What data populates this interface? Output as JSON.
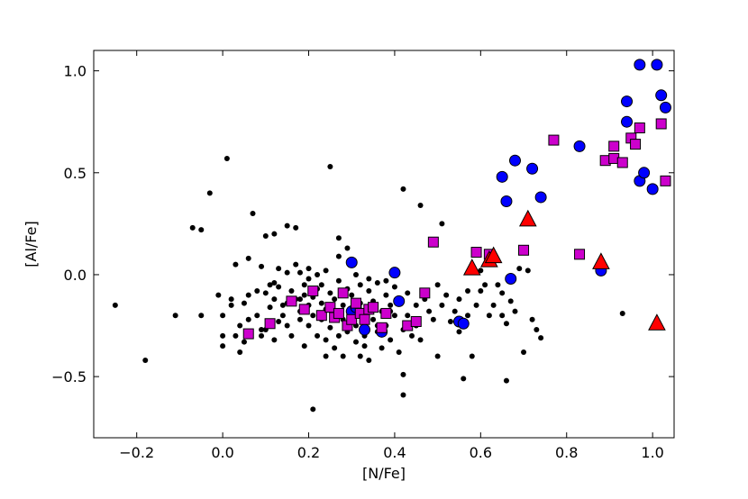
{
  "chart_data": {
    "type": "scatter",
    "xlabel": "[N/Fe]",
    "ylabel": "[Al/Fe]",
    "xlim": [
      -0.3,
      1.05
    ],
    "ylim": [
      -0.8,
      1.1
    ],
    "xticks": [
      -0.2,
      0.0,
      0.2,
      0.4,
      0.6,
      0.8,
      1.0
    ],
    "xtick_labels": [
      "−0.2",
      "0.0",
      "0.2",
      "0.4",
      "0.6",
      "0.8",
      "1.0"
    ],
    "yticks": [
      -0.5,
      0.0,
      0.5,
      1.0
    ],
    "ytick_labels": [
      "−0.5",
      "0.0",
      "0.5",
      "1.0"
    ],
    "grid": false,
    "series": [
      {
        "marker": "dot",
        "color": "#000000",
        "points": [
          [
            -0.25,
            -0.15
          ],
          [
            -0.18,
            -0.42
          ],
          [
            -0.11,
            -0.2
          ],
          [
            -0.07,
            0.23
          ],
          [
            -0.05,
            0.22
          ],
          [
            -0.03,
            0.4
          ],
          [
            -0.05,
            -0.2
          ],
          [
            -0.01,
            -0.1
          ],
          [
            0.0,
            -0.2
          ],
          [
            0.0,
            -0.3
          ],
          [
            0.0,
            -0.35
          ],
          [
            0.01,
            0.57
          ],
          [
            0.02,
            -0.12
          ],
          [
            0.02,
            -0.15
          ],
          [
            0.03,
            0.05
          ],
          [
            0.04,
            -0.25
          ],
          [
            0.04,
            -0.38
          ],
          [
            0.05,
            -0.14
          ],
          [
            0.05,
            -0.33
          ],
          [
            0.06,
            0.08
          ],
          [
            0.06,
            -0.1
          ],
          [
            0.06,
            -0.22
          ],
          [
            0.07,
            0.3
          ],
          [
            0.08,
            -0.08
          ],
          [
            0.08,
            -0.2
          ],
          [
            0.09,
            0.04
          ],
          [
            0.09,
            -0.3
          ],
          [
            0.1,
            -0.09
          ],
          [
            0.1,
            0.19
          ],
          [
            0.1,
            -0.27
          ],
          [
            0.11,
            -0.05
          ],
          [
            0.11,
            -0.16
          ],
          [
            0.12,
            0.2
          ],
          [
            0.12,
            -0.12
          ],
          [
            0.12,
            -0.32
          ],
          [
            0.13,
            0.03
          ],
          [
            0.13,
            -0.06
          ],
          [
            0.14,
            -0.2
          ],
          [
            0.14,
            -0.15
          ],
          [
            0.15,
            0.24
          ],
          [
            0.15,
            -0.25
          ],
          [
            0.15,
            0.01
          ],
          [
            0.16,
            -0.08
          ],
          [
            0.16,
            -0.3
          ],
          [
            0.17,
            0.23
          ],
          [
            0.17,
            0.05
          ],
          [
            0.17,
            -0.12
          ],
          [
            0.18,
            -0.18
          ],
          [
            0.18,
            -0.22
          ],
          [
            0.18,
            0.01
          ],
          [
            0.19,
            -0.05
          ],
          [
            0.19,
            -0.35
          ],
          [
            0.19,
            -0.1
          ],
          [
            0.2,
            -0.15
          ],
          [
            0.2,
            0.03
          ],
          [
            0.2,
            -0.25
          ],
          [
            0.21,
            -0.66
          ],
          [
            0.21,
            -0.2
          ],
          [
            0.21,
            -0.11
          ],
          [
            0.22,
            -0.07
          ],
          [
            0.22,
            0.0
          ],
          [
            0.22,
            -0.3
          ],
          [
            0.23,
            -0.14
          ],
          [
            0.23,
            -0.22
          ],
          [
            0.23,
            -0.05
          ],
          [
            0.24,
            -0.4
          ],
          [
            0.24,
            -0.17
          ],
          [
            0.24,
            0.02
          ],
          [
            0.25,
            -0.09
          ],
          [
            0.25,
            -0.26
          ],
          [
            0.25,
            0.53
          ],
          [
            0.26,
            -0.2
          ],
          [
            0.26,
            -0.36
          ],
          [
            0.26,
            -0.12
          ],
          [
            0.27,
            -0.3
          ],
          [
            0.27,
            0.18
          ],
          [
            0.27,
            -0.03
          ],
          [
            0.28,
            -0.15
          ],
          [
            0.28,
            -0.4
          ],
          [
            0.28,
            -0.22
          ],
          [
            0.29,
            -0.07
          ],
          [
            0.29,
            -0.28
          ],
          [
            0.29,
            0.13
          ],
          [
            0.3,
            -0.18
          ],
          [
            0.3,
            -0.1
          ],
          [
            0.31,
            -0.33
          ],
          [
            0.31,
            -0.25
          ],
          [
            0.31,
            0.0
          ],
          [
            0.32,
            -0.14
          ],
          [
            0.32,
            -0.05
          ],
          [
            0.33,
            -0.3
          ],
          [
            0.33,
            -0.2
          ],
          [
            0.33,
            -0.35
          ],
          [
            0.34,
            -0.08
          ],
          [
            0.34,
            -0.42
          ],
          [
            0.35,
            -0.22
          ],
          [
            0.35,
            -0.13
          ],
          [
            0.36,
            -0.28
          ],
          [
            0.36,
            -0.04
          ],
          [
            0.37,
            -0.18
          ],
          [
            0.37,
            -0.36
          ],
          [
            0.38,
            -0.1
          ],
          [
            0.38,
            -0.25
          ],
          [
            0.38,
            -0.03
          ],
          [
            0.39,
            -0.15
          ],
          [
            0.39,
            -0.32
          ],
          [
            0.4,
            -0.06
          ],
          [
            0.4,
            -0.2
          ],
          [
            0.41,
            -0.38
          ],
          [
            0.41,
            -0.12
          ],
          [
            0.42,
            0.42
          ],
          [
            0.42,
            -0.49
          ],
          [
            0.42,
            -0.59
          ],
          [
            0.42,
            -0.27
          ],
          [
            0.43,
            -0.2
          ],
          [
            0.43,
            -0.09
          ],
          [
            0.44,
            -0.3
          ],
          [
            0.45,
            -0.15
          ],
          [
            0.45,
            -0.25
          ],
          [
            0.46,
            0.34
          ],
          [
            0.47,
            -0.12
          ],
          [
            0.48,
            -0.18
          ],
          [
            0.49,
            -0.22
          ],
          [
            0.5,
            -0.05
          ],
          [
            0.51,
            0.25
          ],
          [
            0.51,
            -0.15
          ],
          [
            0.52,
            -0.1
          ],
          [
            0.53,
            -0.23
          ],
          [
            0.54,
            -0.18
          ],
          [
            0.55,
            -0.12
          ],
          [
            0.55,
            -0.28
          ],
          [
            0.56,
            -0.51
          ],
          [
            0.57,
            -0.08
          ],
          [
            0.58,
            -0.4
          ],
          [
            0.59,
            -0.15
          ],
          [
            0.6,
            -0.08
          ],
          [
            0.61,
            -0.05
          ],
          [
            0.62,
            -0.2
          ],
          [
            0.63,
            -0.15
          ],
          [
            0.64,
            -0.05
          ],
          [
            0.65,
            -0.09
          ],
          [
            0.65,
            -0.2
          ],
          [
            0.66,
            -0.52
          ],
          [
            0.66,
            -0.24
          ],
          [
            0.67,
            -0.13
          ],
          [
            0.68,
            -0.18
          ],
          [
            0.69,
            0.03
          ],
          [
            0.7,
            -0.38
          ],
          [
            0.71,
            0.02
          ],
          [
            0.72,
            -0.22
          ],
          [
            0.73,
            -0.27
          ],
          [
            0.74,
            -0.31
          ],
          [
            0.5,
            -0.4
          ],
          [
            0.36,
            -0.25
          ],
          [
            0.09,
            -0.27
          ],
          [
            0.03,
            -0.3
          ],
          [
            0.13,
            -0.23
          ],
          [
            0.18,
            -0.12
          ],
          [
            0.2,
            -0.02
          ],
          [
            0.27,
            0.09
          ],
          [
            0.34,
            -0.02
          ],
          [
            0.46,
            -0.32
          ],
          [
            0.57,
            -0.2
          ],
          [
            0.6,
            0.02
          ],
          [
            0.93,
            -0.19
          ],
          [
            0.32,
            -0.4
          ],
          [
            0.24,
            -0.32
          ],
          [
            0.15,
            -0.14
          ],
          [
            0.12,
            -0.04
          ],
          [
            0.39,
            -0.18
          ]
        ]
      },
      {
        "marker": "circle",
        "color": "#0000ff",
        "points": [
          [
            0.3,
            0.06
          ],
          [
            0.3,
            -0.18
          ],
          [
            0.31,
            -0.16
          ],
          [
            0.33,
            -0.27
          ],
          [
            0.37,
            -0.28
          ],
          [
            0.4,
            0.01
          ],
          [
            0.41,
            -0.13
          ],
          [
            0.55,
            -0.23
          ],
          [
            0.56,
            -0.24
          ],
          [
            0.65,
            0.48
          ],
          [
            0.66,
            0.36
          ],
          [
            0.67,
            -0.02
          ],
          [
            0.68,
            0.56
          ],
          [
            0.72,
            0.52
          ],
          [
            0.74,
            0.38
          ],
          [
            0.83,
            0.63
          ],
          [
            0.88,
            0.02
          ],
          [
            0.94,
            0.75
          ],
          [
            0.94,
            0.85
          ],
          [
            0.97,
            1.03
          ],
          [
            0.97,
            0.46
          ],
          [
            0.98,
            0.5
          ],
          [
            1.0,
            0.42
          ],
          [
            1.01,
            1.03
          ],
          [
            1.02,
            0.88
          ],
          [
            1.03,
            0.82
          ]
        ]
      },
      {
        "marker": "square",
        "color": "#cc00cc",
        "points": [
          [
            0.06,
            -0.29
          ],
          [
            0.11,
            -0.24
          ],
          [
            0.16,
            -0.13
          ],
          [
            0.19,
            -0.17
          ],
          [
            0.21,
            -0.08
          ],
          [
            0.23,
            -0.2
          ],
          [
            0.25,
            -0.16
          ],
          [
            0.26,
            -0.21
          ],
          [
            0.27,
            -0.19
          ],
          [
            0.28,
            -0.09
          ],
          [
            0.29,
            -0.25
          ],
          [
            0.3,
            -0.22
          ],
          [
            0.31,
            -0.14
          ],
          [
            0.32,
            -0.19
          ],
          [
            0.33,
            -0.22
          ],
          [
            0.34,
            -0.17
          ],
          [
            0.35,
            -0.16
          ],
          [
            0.37,
            -0.26
          ],
          [
            0.38,
            -0.19
          ],
          [
            0.43,
            -0.25
          ],
          [
            0.45,
            -0.23
          ],
          [
            0.47,
            -0.09
          ],
          [
            0.49,
            0.16
          ],
          [
            0.59,
            0.11
          ],
          [
            0.62,
            0.1
          ],
          [
            0.7,
            0.12
          ],
          [
            0.77,
            0.66
          ],
          [
            0.83,
            0.1
          ],
          [
            0.89,
            0.56
          ],
          [
            0.91,
            0.57
          ],
          [
            0.91,
            0.63
          ],
          [
            0.93,
            0.55
          ],
          [
            0.95,
            0.67
          ],
          [
            0.96,
            0.64
          ],
          [
            0.97,
            0.72
          ],
          [
            1.02,
            0.74
          ],
          [
            1.03,
            0.46
          ]
        ]
      },
      {
        "marker": "triangle",
        "color": "#ff0000",
        "points": [
          [
            0.58,
            0.03
          ],
          [
            0.62,
            0.07
          ],
          [
            0.63,
            0.09
          ],
          [
            0.71,
            0.27
          ],
          [
            0.88,
            0.06
          ],
          [
            1.01,
            -0.24
          ]
        ]
      }
    ]
  }
}
